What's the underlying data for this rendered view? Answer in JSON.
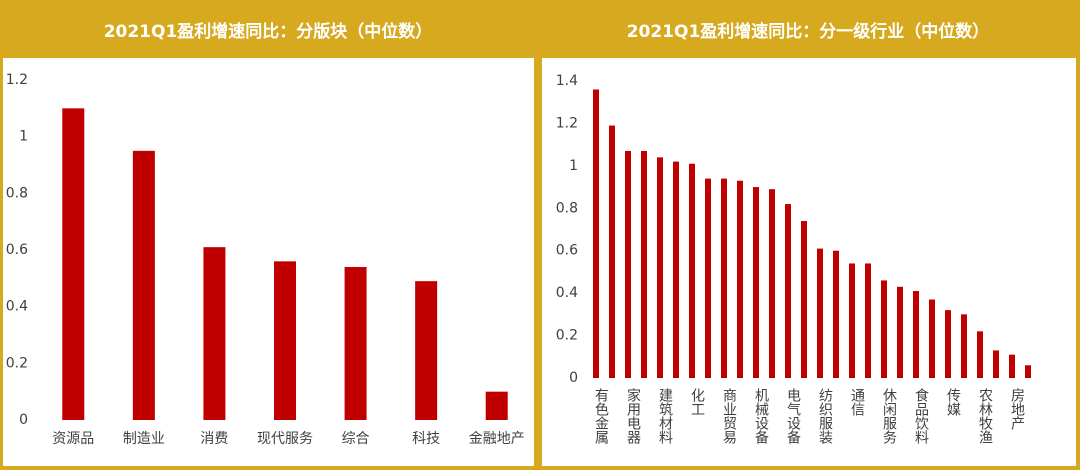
{
  "chart_data": [
    {
      "type": "bar",
      "title": "2021Q1盈利增速同比：分版块（中位数）",
      "categories": [
        "资源品",
        "制造业",
        "消费",
        "现代服务",
        "综合",
        "科技",
        "金融地产"
      ],
      "values": [
        1.1,
        0.95,
        0.61,
        0.56,
        0.54,
        0.49,
        0.1
      ],
      "color": "#c00000",
      "ylim": [
        0,
        1.2
      ],
      "yticks": [
        0,
        0.2,
        0.4,
        0.6,
        0.8,
        1,
        1.2
      ],
      "grid": false
    },
    {
      "type": "bar",
      "title": "2021Q1盈利增速同比：分一级行业（中位数）",
      "categories": [
        "有色金属",
        null,
        "家用电器",
        null,
        "建筑材料",
        null,
        "化工",
        null,
        "商业贸易",
        null,
        "机械设备",
        null,
        "电气设备",
        null,
        "纺织服装",
        null,
        "通信",
        null,
        "休闲服务",
        null,
        "食品饮料",
        null,
        "传媒",
        null,
        "农林牧渔",
        null,
        "房地产",
        null
      ],
      "values": [
        1.36,
        1.19,
        1.07,
        1.07,
        1.04,
        1.02,
        1.01,
        0.94,
        0.94,
        0.93,
        0.9,
        0.89,
        0.82,
        0.74,
        0.61,
        0.6,
        0.54,
        0.54,
        0.46,
        0.43,
        0.41,
        0.37,
        0.32,
        0.3,
        0.22,
        0.13,
        0.11,
        0.06
      ],
      "color": "#c00000",
      "ylim": [
        0,
        1.4
      ],
      "yticks": [
        0,
        0.2,
        0.4,
        0.6,
        0.8,
        1,
        1.2,
        1.4
      ],
      "grid": false
    }
  ]
}
